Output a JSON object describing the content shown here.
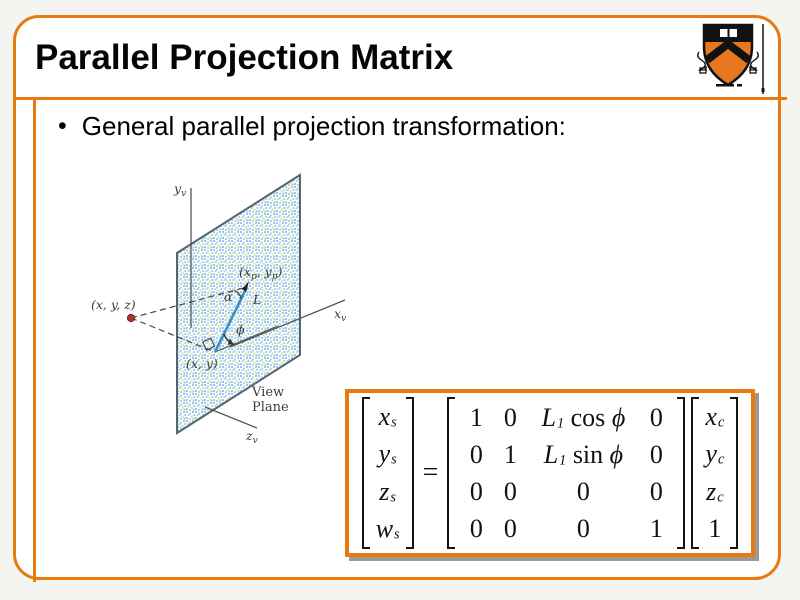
{
  "slide": {
    "title": "Parallel Projection Matrix",
    "bullet_marker": "•",
    "bullet": "General parallel projection transformation:"
  },
  "colors": {
    "accent_orange": "#e87b10",
    "plane_dot_blue": "#9cc8e2",
    "plane_dot_yellow": "#e6e07e",
    "projection_line_blue": "#3e8fc4",
    "world_point_red": "#b5342a",
    "equation_shadow_gray": "#9a9a9a"
  },
  "logo": {
    "name": "princeton-university-shield"
  },
  "diagram": {
    "caption_line1": "View",
    "caption_line2": "Plane",
    "labels": {
      "y_axis_base": "y",
      "y_axis_sub": "v",
      "x_axis_base": "x",
      "x_axis_sub": "v",
      "z_axis_base": "z",
      "z_axis_sub": "v",
      "world_point": "(x, y, z)",
      "plane_point": "(x, y)",
      "proj_open": "(x",
      "proj_sub1": "p",
      "proj_mid": ", y",
      "proj_sub2": "p",
      "proj_close": ")",
      "alpha": "α",
      "length": "L",
      "phi": "ϕ"
    }
  },
  "equation": {
    "equals": "=",
    "left_vector": [
      [
        {
          "t": "x",
          "s": "var"
        },
        {
          "t": "s",
          "s": "sub"
        }
      ],
      [
        {
          "t": "y",
          "s": "var"
        },
        {
          "t": "s",
          "s": "sub"
        }
      ],
      [
        {
          "t": "z",
          "s": "var"
        },
        {
          "t": "s",
          "s": "sub"
        }
      ],
      [
        {
          "t": "w",
          "s": "var"
        },
        {
          "t": "s",
          "s": "sub"
        }
      ]
    ],
    "matrix_rows": [
      [
        [
          {
            "t": "1",
            "s": "num"
          }
        ],
        [
          {
            "t": "0",
            "s": "num"
          }
        ],
        [
          {
            "t": "L",
            "s": "var"
          },
          {
            "t": "1",
            "s": "sub"
          },
          {
            "t": " cos ",
            "s": "rm"
          },
          {
            "t": "ϕ",
            "s": "var"
          }
        ],
        [
          {
            "t": "0",
            "s": "num"
          }
        ]
      ],
      [
        [
          {
            "t": "0",
            "s": "num"
          }
        ],
        [
          {
            "t": "1",
            "s": "num"
          }
        ],
        [
          {
            "t": "L",
            "s": "var"
          },
          {
            "t": "1",
            "s": "sub"
          },
          {
            "t": " sin ",
            "s": "rm"
          },
          {
            "t": "ϕ",
            "s": "var"
          }
        ],
        [
          {
            "t": "0",
            "s": "num"
          }
        ]
      ],
      [
        [
          {
            "t": "0",
            "s": "num"
          }
        ],
        [
          {
            "t": "0",
            "s": "num"
          }
        ],
        [
          {
            "t": "0",
            "s": "num"
          }
        ],
        [
          {
            "t": "0",
            "s": "num"
          }
        ]
      ],
      [
        [
          {
            "t": "0",
            "s": "num"
          }
        ],
        [
          {
            "t": "0",
            "s": "num"
          }
        ],
        [
          {
            "t": "0",
            "s": "num"
          }
        ],
        [
          {
            "t": "1",
            "s": "num"
          }
        ]
      ]
    ],
    "right_vector": [
      [
        {
          "t": "x",
          "s": "var"
        },
        {
          "t": "c",
          "s": "sub"
        }
      ],
      [
        {
          "t": "y",
          "s": "var"
        },
        {
          "t": "c",
          "s": "sub"
        }
      ],
      [
        {
          "t": "z",
          "s": "var"
        },
        {
          "t": "c",
          "s": "sub"
        }
      ],
      [
        {
          "t": "1",
          "s": "num"
        }
      ]
    ]
  }
}
